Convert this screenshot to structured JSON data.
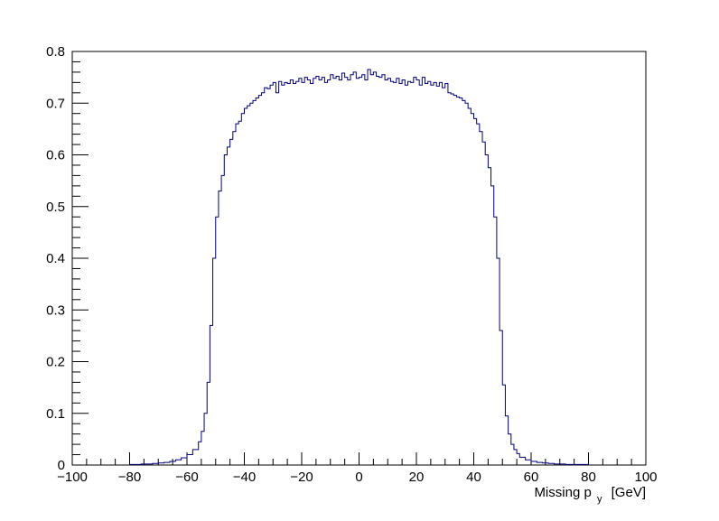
{
  "chart_data": {
    "type": "histogram",
    "title": "",
    "xlabel": "Missing p",
    "xlabel_sub": "y",
    "xlabel_unit": "[GeV]",
    "ylabel": "",
    "xlim": [
      -100,
      100
    ],
    "ylim": [
      0,
      0.8
    ],
    "x_ticks": [
      -100,
      -80,
      -60,
      -40,
      -20,
      0,
      20,
      40,
      60,
      80,
      100
    ],
    "x_tick_labels": [
      "−100",
      "−80",
      "−60",
      "−40",
      "−20",
      "0",
      "20",
      "40",
      "60",
      "80",
      "100"
    ],
    "y_ticks": [
      0,
      0.1,
      0.2,
      0.3,
      0.4,
      0.5,
      0.6,
      0.7,
      0.8
    ],
    "y_tick_labels": [
      "0",
      "0.1",
      "0.2",
      "0.3",
      "0.4",
      "0.5",
      "0.6",
      "0.7",
      "0.8"
    ],
    "line_color": "#000080",
    "series": [
      {
        "bins": [
          [
            -80,
            -78,
            0.001
          ],
          [
            -78,
            -76,
            0.001
          ],
          [
            -76,
            -74,
            0.002
          ],
          [
            -74,
            -72,
            0.002
          ],
          [
            -72,
            -70,
            0.003
          ],
          [
            -70,
            -68,
            0.004
          ],
          [
            -68,
            -66,
            0.005
          ],
          [
            -66,
            -64,
            0.007
          ],
          [
            -64,
            -62,
            0.01
          ],
          [
            -62,
            -60,
            0.014
          ],
          [
            -60,
            -58,
            0.02
          ],
          [
            -58,
            -56,
            0.03
          ],
          [
            -56,
            -55,
            0.045
          ],
          [
            -55,
            -54,
            0.065
          ],
          [
            -54,
            -53,
            0.1
          ],
          [
            -53,
            -52,
            0.16
          ],
          [
            -52,
            -51,
            0.27
          ],
          [
            -51,
            -50,
            0.4
          ],
          [
            -50,
            -49,
            0.48
          ],
          [
            -49,
            -48,
            0.53
          ],
          [
            -48,
            -47,
            0.56
          ],
          [
            -47,
            -46,
            0.6
          ],
          [
            -46,
            -45,
            0.615
          ],
          [
            -45,
            -44,
            0.63
          ],
          [
            -44,
            -43,
            0.645
          ],
          [
            -43,
            -42,
            0.66
          ],
          [
            -42,
            -41,
            0.665
          ],
          [
            -41,
            -40,
            0.68
          ],
          [
            -40,
            -39,
            0.69
          ],
          [
            -39,
            -38,
            0.695
          ],
          [
            -38,
            -37,
            0.7
          ],
          [
            -37,
            -36,
            0.705
          ],
          [
            -36,
            -35,
            0.71
          ],
          [
            -35,
            -34,
            0.715
          ],
          [
            -34,
            -33,
            0.72
          ],
          [
            -33,
            -32,
            0.73
          ],
          [
            -32,
            -31,
            0.728
          ],
          [
            -31,
            -30,
            0.735
          ],
          [
            -30,
            -29,
            0.74
          ],
          [
            -29,
            -28,
            0.72
          ],
          [
            -28,
            -27,
            0.742
          ],
          [
            -27,
            -26,
            0.735
          ],
          [
            -26,
            -25,
            0.74
          ],
          [
            -25,
            -24,
            0.738
          ],
          [
            -24,
            -23,
            0.745
          ],
          [
            -23,
            -22,
            0.738
          ],
          [
            -22,
            -21,
            0.742
          ],
          [
            -21,
            -20,
            0.748
          ],
          [
            -20,
            -19,
            0.74
          ],
          [
            -19,
            -18,
            0.75
          ],
          [
            -18,
            -17,
            0.745
          ],
          [
            -17,
            -16,
            0.738
          ],
          [
            -16,
            -15,
            0.748
          ],
          [
            -15,
            -14,
            0.752
          ],
          [
            -14,
            -13,
            0.745
          ],
          [
            -13,
            -12,
            0.75
          ],
          [
            -12,
            -11,
            0.74
          ],
          [
            -11,
            -10,
            0.745
          ],
          [
            -10,
            -9,
            0.755
          ],
          [
            -9,
            -8,
            0.748
          ],
          [
            -8,
            -7,
            0.752
          ],
          [
            -7,
            -6,
            0.745
          ],
          [
            -6,
            -5,
            0.758
          ],
          [
            -5,
            -4,
            0.75
          ],
          [
            -4,
            -3,
            0.745
          ],
          [
            -3,
            -2,
            0.755
          ],
          [
            -2,
            -1,
            0.76
          ],
          [
            -1,
            0,
            0.748
          ],
          [
            0,
            1,
            0.75
          ],
          [
            1,
            2,
            0.755
          ],
          [
            2,
            3,
            0.745
          ],
          [
            3,
            4,
            0.765
          ],
          [
            4,
            5,
            0.755
          ],
          [
            5,
            6,
            0.76
          ],
          [
            6,
            7,
            0.752
          ],
          [
            7,
            8,
            0.75
          ],
          [
            8,
            9,
            0.755
          ],
          [
            9,
            10,
            0.745
          ],
          [
            10,
            11,
            0.748
          ],
          [
            11,
            12,
            0.742
          ],
          [
            12,
            13,
            0.74
          ],
          [
            13,
            14,
            0.748
          ],
          [
            14,
            15,
            0.738
          ],
          [
            15,
            16,
            0.745
          ],
          [
            16,
            17,
            0.735
          ],
          [
            17,
            18,
            0.742
          ],
          [
            18,
            19,
            0.74
          ],
          [
            19,
            20,
            0.75
          ],
          [
            20,
            21,
            0.745
          ],
          [
            21,
            22,
            0.735
          ],
          [
            22,
            23,
            0.75
          ],
          [
            23,
            24,
            0.738
          ],
          [
            24,
            25,
            0.742
          ],
          [
            25,
            26,
            0.735
          ],
          [
            26,
            27,
            0.74
          ],
          [
            27,
            28,
            0.733
          ],
          [
            28,
            29,
            0.74
          ],
          [
            29,
            30,
            0.73
          ],
          [
            30,
            31,
            0.738
          ],
          [
            31,
            32,
            0.72
          ],
          [
            32,
            33,
            0.718
          ],
          [
            33,
            34,
            0.715
          ],
          [
            34,
            35,
            0.712
          ],
          [
            35,
            36,
            0.71
          ],
          [
            36,
            37,
            0.705
          ],
          [
            37,
            38,
            0.7
          ],
          [
            38,
            39,
            0.69
          ],
          [
            39,
            40,
            0.68
          ],
          [
            40,
            41,
            0.67
          ],
          [
            41,
            42,
            0.66
          ],
          [
            42,
            43,
            0.645
          ],
          [
            43,
            44,
            0.625
          ],
          [
            44,
            45,
            0.6
          ],
          [
            45,
            46,
            0.575
          ],
          [
            46,
            47,
            0.54
          ],
          [
            47,
            48,
            0.48
          ],
          [
            48,
            49,
            0.4
          ],
          [
            49,
            50,
            0.26
          ],
          [
            50,
            51,
            0.155
          ],
          [
            51,
            52,
            0.095
          ],
          [
            52,
            53,
            0.06
          ],
          [
            53,
            54,
            0.04
          ],
          [
            54,
            55,
            0.03
          ],
          [
            55,
            56,
            0.022
          ],
          [
            56,
            58,
            0.015
          ],
          [
            58,
            60,
            0.01
          ],
          [
            60,
            62,
            0.007
          ],
          [
            62,
            64,
            0.005
          ],
          [
            64,
            66,
            0.004
          ],
          [
            66,
            68,
            0.003
          ],
          [
            68,
            70,
            0.002
          ],
          [
            70,
            72,
            0.002
          ],
          [
            72,
            74,
            0.001
          ],
          [
            74,
            76,
            0.001
          ],
          [
            76,
            78,
            0.001
          ],
          [
            78,
            80,
            0.001
          ]
        ]
      }
    ]
  }
}
